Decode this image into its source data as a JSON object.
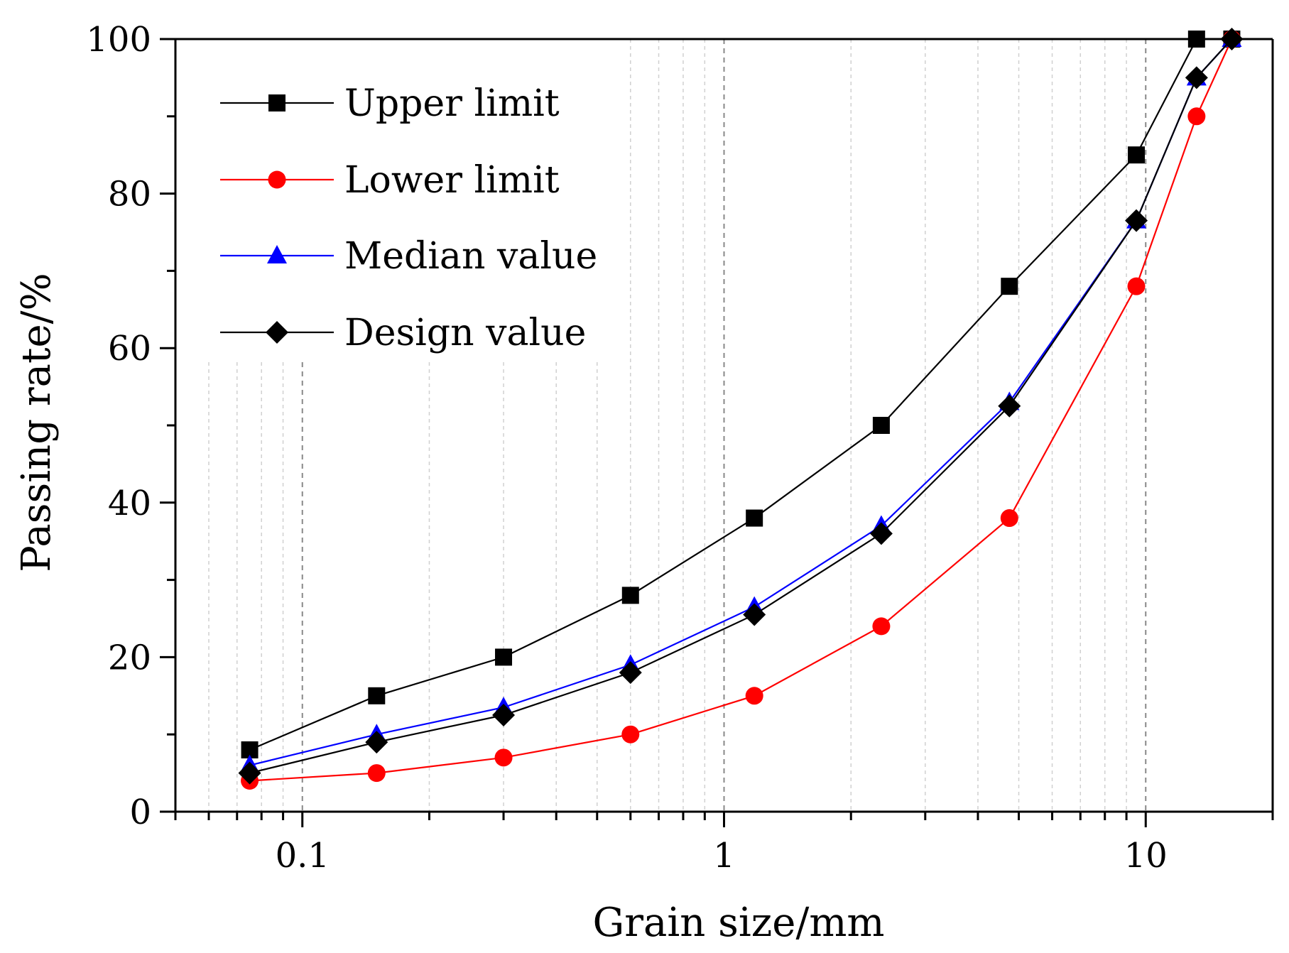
{
  "chart_data": {
    "type": "line",
    "title": "",
    "xlabel": "Grain size/mm",
    "ylabel": "Passing rate/%",
    "x_scale": "log",
    "xlim": [
      0.05,
      20
    ],
    "ylim": [
      0,
      100
    ],
    "grid": "vertical",
    "legend_position": "top-left",
    "x_tick_labels": [
      {
        "value": 0.1,
        "label": "0.1"
      },
      {
        "value": 1,
        "label": "1"
      },
      {
        "value": 10,
        "label": "10"
      }
    ],
    "y_tick_labels": [
      {
        "value": 0,
        "label": "0"
      },
      {
        "value": 20,
        "label": "20"
      },
      {
        "value": 40,
        "label": "40"
      },
      {
        "value": 60,
        "label": "60"
      },
      {
        "value": 80,
        "label": "80"
      },
      {
        "value": 100,
        "label": "100"
      }
    ],
    "x": [
      0.075,
      0.15,
      0.3,
      0.6,
      1.18,
      2.36,
      4.75,
      9.5,
      13.2,
      16
    ],
    "series": [
      {
        "name": "Upper limit",
        "color": "#000000",
        "marker": "square",
        "values": [
          8,
          15,
          20,
          28,
          38,
          50,
          68,
          85,
          100,
          100
        ]
      },
      {
        "name": "Lower limit",
        "color": "#ff0000",
        "marker": "circle",
        "values": [
          4,
          5,
          7,
          10,
          15,
          24,
          38,
          68,
          90,
          100
        ]
      },
      {
        "name": "Median value",
        "color": "#0000ff",
        "marker": "triangle",
        "values": [
          6,
          10,
          13.5,
          19,
          26.5,
          37,
          53,
          76.5,
          95,
          100
        ]
      },
      {
        "name": "Design value",
        "color": "#000000",
        "marker": "diamond",
        "values": [
          5,
          9,
          12.5,
          18,
          25.5,
          36,
          52.5,
          76.5,
          95,
          100
        ]
      }
    ]
  }
}
